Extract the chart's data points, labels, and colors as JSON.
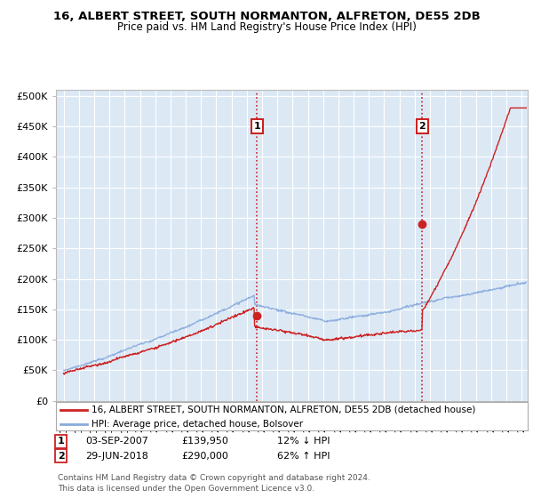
{
  "title1": "16, ALBERT STREET, SOUTH NORMANTON, ALFRETON, DE55 2DB",
  "title2": "Price paid vs. HM Land Registry's House Price Index (HPI)",
  "ylabel_ticks": [
    "£0",
    "£50K",
    "£100K",
    "£150K",
    "£200K",
    "£250K",
    "£300K",
    "£350K",
    "£400K",
    "£450K",
    "£500K"
  ],
  "ytick_vals": [
    0,
    50000,
    100000,
    150000,
    200000,
    250000,
    300000,
    350000,
    400000,
    450000,
    500000
  ],
  "ylim": [
    0,
    510000
  ],
  "xlim_start": 1994.5,
  "xlim_end": 2025.4,
  "plot_bg_color": "#dce9f5",
  "red_color": "#cc2222",
  "blue_color": "#88aadd",
  "annotation1": {
    "label": "1",
    "x": 2007.67,
    "date": "03-SEP-2007",
    "price": "£139,950",
    "change": "12% ↓ HPI"
  },
  "annotation2": {
    "label": "2",
    "x": 2018.49,
    "date": "29-JUN-2018",
    "price": "£290,000",
    "change": "62% ↑ HPI"
  },
  "legend_line1": "16, ALBERT STREET, SOUTH NORMANTON, ALFRETON, DE55 2DB (detached house)",
  "legend_line2": "HPI: Average price, detached house, Bolsover",
  "footer": "Contains HM Land Registry data © Crown copyright and database right 2024.\nThis data is licensed under the Open Government Licence v3.0.",
  "sale1_x": 2007.67,
  "sale1_y": 139950,
  "sale2_x": 2018.49,
  "sale2_y": 290000
}
